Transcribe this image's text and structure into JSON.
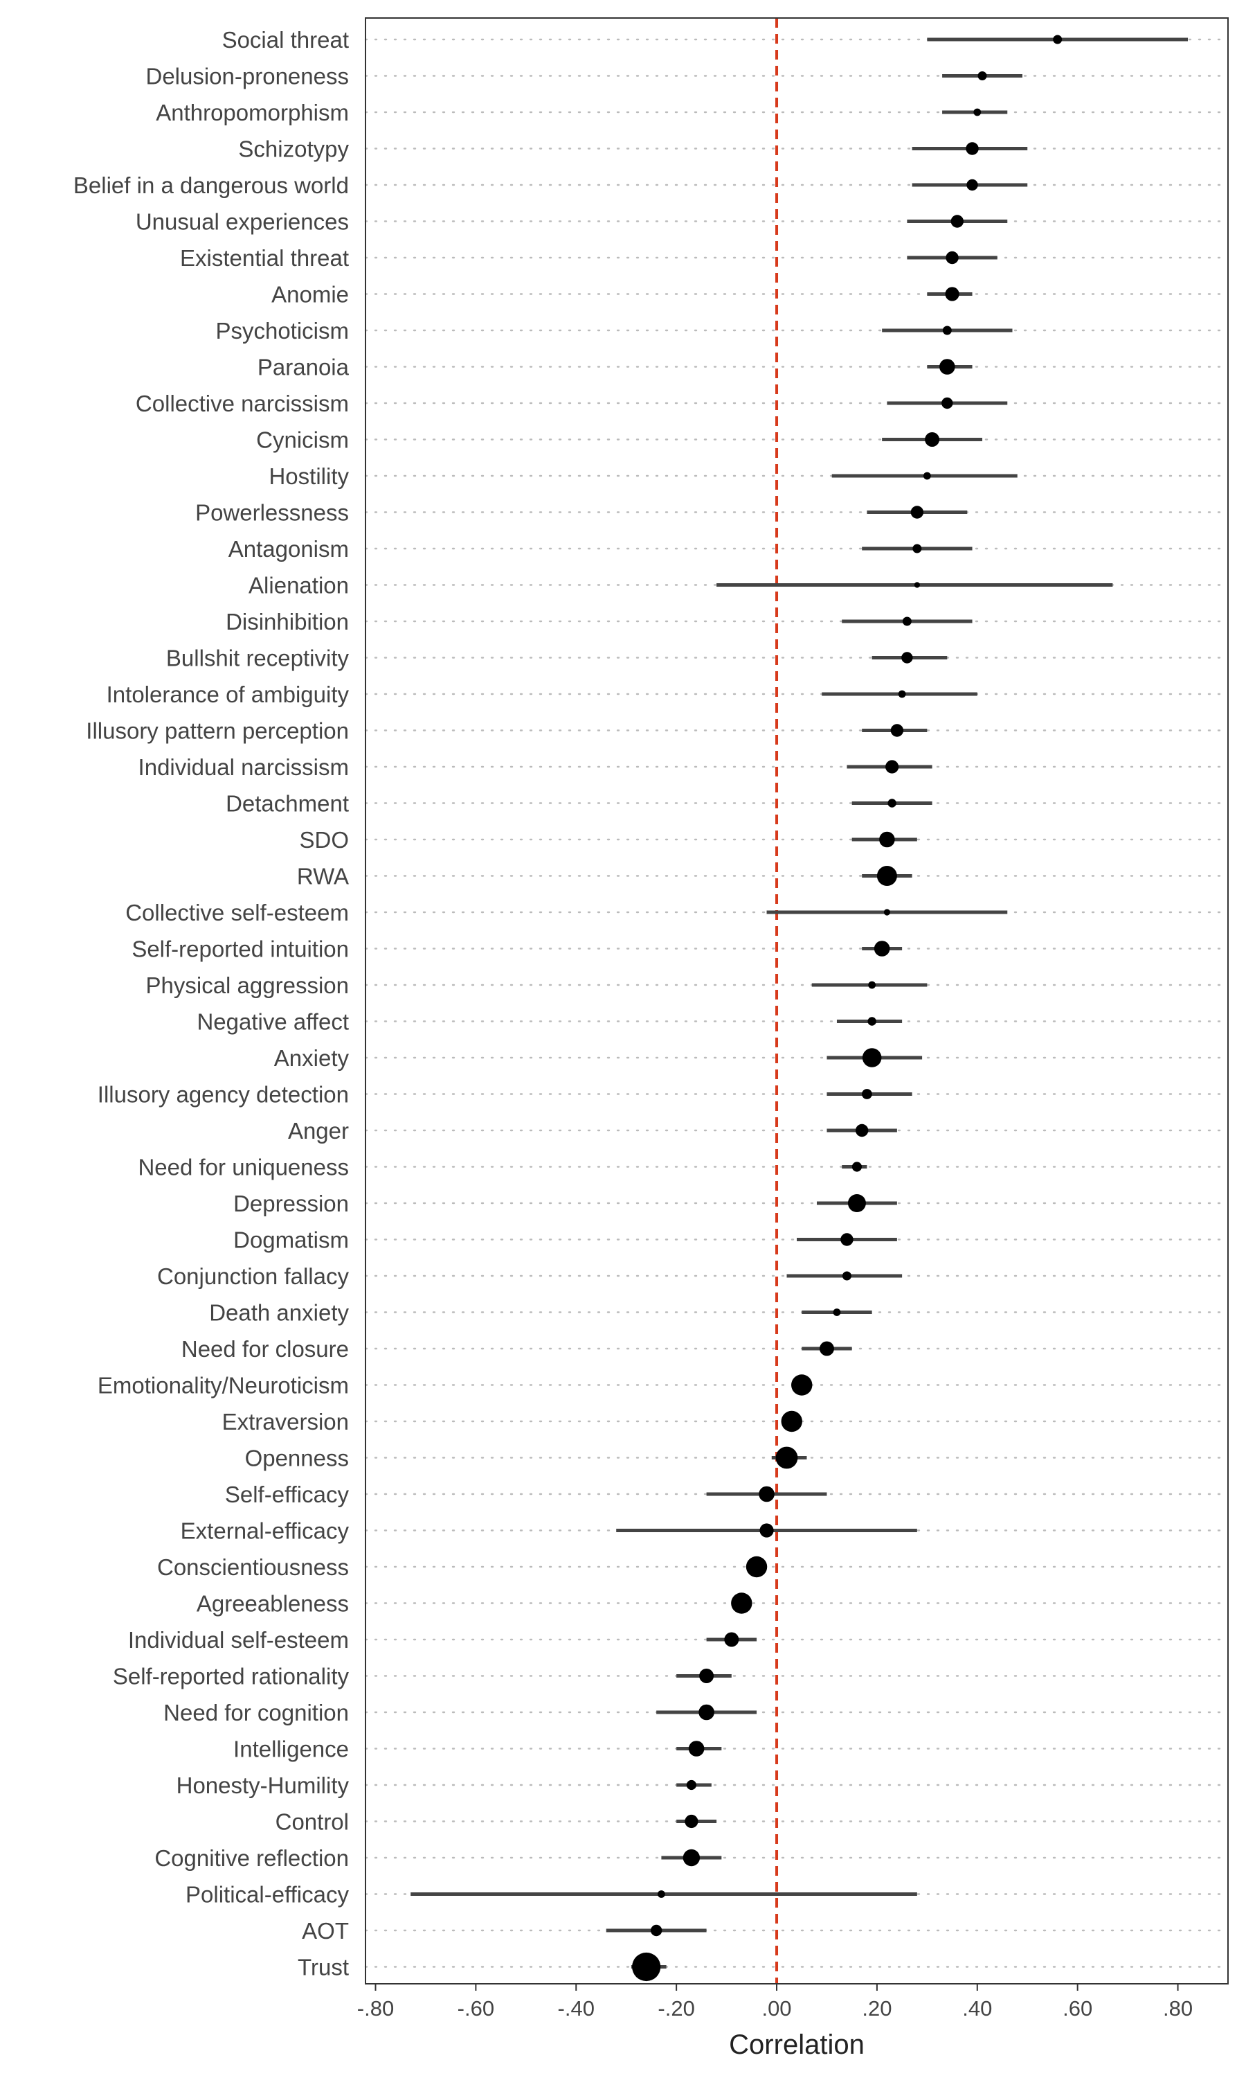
{
  "chart_data": {
    "type": "scatter",
    "subtype": "forest-plot",
    "xlabel": "Correlation",
    "ylabel": "",
    "xlim": [
      -0.82,
      0.9
    ],
    "x_ticks": [
      -0.8,
      -0.6,
      -0.4,
      -0.2,
      0.0,
      0.2,
      0.4,
      0.6,
      0.8
    ],
    "x_tick_labels": [
      "-.80",
      "-.60",
      "-.40",
      "-.20",
      ".00",
      ".20",
      ".40",
      ".60",
      ".80"
    ],
    "reference_line": {
      "x": 0.0,
      "style": "dashed",
      "color": "#d73a1c"
    },
    "grid": "horizontal dotted",
    "colors": {
      "point": "#000000",
      "interval": "#444444",
      "grid": "#bbbbbb",
      "frame": "#333333"
    },
    "rows": [
      {
        "label": "Social threat",
        "r": 0.56,
        "ci": [
          0.3,
          0.82
        ],
        "size": 1
      },
      {
        "label": "Delusion-proneness",
        "r": 0.41,
        "ci": [
          0.33,
          0.49
        ],
        "size": 1
      },
      {
        "label": "Anthropomorphism",
        "r": 0.4,
        "ci": [
          0.33,
          0.46
        ],
        "size": 0.7
      },
      {
        "label": "Schizotypy",
        "r": 0.39,
        "ci": [
          0.27,
          0.5
        ],
        "size": 2
      },
      {
        "label": "Belief in a dangerous world",
        "r": 0.39,
        "ci": [
          0.27,
          0.5
        ],
        "size": 1.6
      },
      {
        "label": "Unusual experiences",
        "r": 0.36,
        "ci": [
          0.26,
          0.46
        ],
        "size": 2
      },
      {
        "label": "Existential threat",
        "r": 0.35,
        "ci": [
          0.26,
          0.44
        ],
        "size": 2
      },
      {
        "label": "Anomie",
        "r": 0.35,
        "ci": [
          0.3,
          0.39
        ],
        "size": 2.4
      },
      {
        "label": "Psychoticism",
        "r": 0.34,
        "ci": [
          0.21,
          0.47
        ],
        "size": 1
      },
      {
        "label": "Paranoia",
        "r": 0.34,
        "ci": [
          0.3,
          0.39
        ],
        "size": 3
      },
      {
        "label": "Collective narcissism",
        "r": 0.34,
        "ci": [
          0.22,
          0.46
        ],
        "size": 1.6
      },
      {
        "label": "Cynicism",
        "r": 0.31,
        "ci": [
          0.21,
          0.41
        ],
        "size": 2.6
      },
      {
        "label": "Hostility",
        "r": 0.3,
        "ci": [
          0.11,
          0.48
        ],
        "size": 0.7
      },
      {
        "label": "Powerlessness",
        "r": 0.28,
        "ci": [
          0.18,
          0.38
        ],
        "size": 2
      },
      {
        "label": "Antagonism",
        "r": 0.28,
        "ci": [
          0.17,
          0.39
        ],
        "size": 1
      },
      {
        "label": "Alienation",
        "r": 0.28,
        "ci": [
          -0.12,
          0.67
        ],
        "size": 0.4
      },
      {
        "label": "Disinhibition",
        "r": 0.26,
        "ci": [
          0.13,
          0.39
        ],
        "size": 1
      },
      {
        "label": "Bullshit receptivity",
        "r": 0.26,
        "ci": [
          0.19,
          0.34
        ],
        "size": 1.6
      },
      {
        "label": "Intolerance of ambiguity",
        "r": 0.25,
        "ci": [
          0.09,
          0.4
        ],
        "size": 0.7
      },
      {
        "label": "Illusory pattern perception",
        "r": 0.24,
        "ci": [
          0.17,
          0.3
        ],
        "size": 2
      },
      {
        "label": "Individual narcissism",
        "r": 0.23,
        "ci": [
          0.14,
          0.31
        ],
        "size": 2.2
      },
      {
        "label": "Detachment",
        "r": 0.23,
        "ci": [
          0.15,
          0.31
        ],
        "size": 0.9
      },
      {
        "label": "SDO",
        "r": 0.22,
        "ci": [
          0.15,
          0.28
        ],
        "size": 3
      },
      {
        "label": "RWA",
        "r": 0.22,
        "ci": [
          0.17,
          0.27
        ],
        "size": 5
      },
      {
        "label": "Collective self-esteem",
        "r": 0.22,
        "ci": [
          -0.02,
          0.46
        ],
        "size": 0.5
      },
      {
        "label": "Self-reported intuition",
        "r": 0.21,
        "ci": [
          0.17,
          0.25
        ],
        "size": 3
      },
      {
        "label": "Physical aggression",
        "r": 0.19,
        "ci": [
          0.07,
          0.3
        ],
        "size": 0.7
      },
      {
        "label": "Negative affect",
        "r": 0.19,
        "ci": [
          0.12,
          0.25
        ],
        "size": 0.9
      },
      {
        "label": "Anxiety",
        "r": 0.19,
        "ci": [
          0.1,
          0.29
        ],
        "size": 4.5
      },
      {
        "label": "Illusory agency detection",
        "r": 0.18,
        "ci": [
          0.1,
          0.27
        ],
        "size": 1.3
      },
      {
        "label": "Anger",
        "r": 0.17,
        "ci": [
          0.1,
          0.24
        ],
        "size": 2
      },
      {
        "label": "Need for uniqueness",
        "r": 0.16,
        "ci": [
          0.13,
          0.18
        ],
        "size": 1.2
      },
      {
        "label": "Depression",
        "r": 0.16,
        "ci": [
          0.08,
          0.24
        ],
        "size": 4
      },
      {
        "label": "Dogmatism",
        "r": 0.14,
        "ci": [
          0.04,
          0.24
        ],
        "size": 2
      },
      {
        "label": "Conjunction fallacy",
        "r": 0.14,
        "ci": [
          0.02,
          0.25
        ],
        "size": 1
      },
      {
        "label": "Death anxiety",
        "r": 0.12,
        "ci": [
          0.05,
          0.19
        ],
        "size": 0.7
      },
      {
        "label": "Need for closure",
        "r": 0.1,
        "ci": [
          0.05,
          0.15
        ],
        "size": 2.6
      },
      {
        "label": "Emotionality/Neuroticism",
        "r": 0.05,
        "ci": [
          0.03,
          0.07
        ],
        "size": 5.5
      },
      {
        "label": "Extraversion",
        "r": 0.03,
        "ci": [
          0.01,
          0.05
        ],
        "size": 5.5
      },
      {
        "label": "Openness",
        "r": 0.02,
        "ci": [
          -0.01,
          0.06
        ],
        "size": 6
      },
      {
        "label": "Self-efficacy",
        "r": -0.02,
        "ci": [
          -0.14,
          0.1
        ],
        "size": 3
      },
      {
        "label": "External-efficacy",
        "r": -0.02,
        "ci": [
          -0.32,
          0.28
        ],
        "size": 2.4
      },
      {
        "label": "Conscientiousness",
        "r": -0.04,
        "ci": [
          -0.06,
          -0.02
        ],
        "size": 5.5
      },
      {
        "label": "Agreeableness",
        "r": -0.07,
        "ci": [
          -0.09,
          -0.05
        ],
        "size": 5.5
      },
      {
        "label": "Individual self-esteem",
        "r": -0.09,
        "ci": [
          -0.14,
          -0.04
        ],
        "size": 2.6
      },
      {
        "label": "Self-reported rationality",
        "r": -0.14,
        "ci": [
          -0.2,
          -0.09
        ],
        "size": 2.6
      },
      {
        "label": "Need for cognition",
        "r": -0.14,
        "ci": [
          -0.24,
          -0.04
        ],
        "size": 3
      },
      {
        "label": "Intelligence",
        "r": -0.16,
        "ci": [
          -0.2,
          -0.11
        ],
        "size": 3
      },
      {
        "label": "Honesty-Humility",
        "r": -0.17,
        "ci": [
          -0.2,
          -0.13
        ],
        "size": 1.2
      },
      {
        "label": "Control",
        "r": -0.17,
        "ci": [
          -0.2,
          -0.12
        ],
        "size": 2.2
      },
      {
        "label": "Cognitive reflection",
        "r": -0.17,
        "ci": [
          -0.23,
          -0.11
        ],
        "size": 3.5
      },
      {
        "label": "Political-efficacy",
        "r": -0.23,
        "ci": [
          -0.73,
          0.28
        ],
        "size": 0.7
      },
      {
        "label": "AOT",
        "r": -0.24,
        "ci": [
          -0.34,
          -0.14
        ],
        "size": 1.6
      },
      {
        "label": "Trust",
        "r": -0.26,
        "ci": [
          -0.29,
          -0.22
        ],
        "size": 10
      }
    ]
  }
}
